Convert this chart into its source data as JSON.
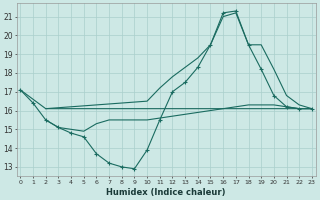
{
  "xlabel": "Humidex (Indice chaleur)",
  "bg_color": "#cde8e5",
  "grid_color": "#aacfcc",
  "line_color": "#1a6b60",
  "x_ticks": [
    0,
    1,
    2,
    3,
    4,
    5,
    6,
    7,
    8,
    9,
    10,
    11,
    12,
    13,
    14,
    15,
    16,
    17,
    18,
    19,
    20,
    21,
    22,
    23
  ],
  "ylim": [
    12.5,
    21.7
  ],
  "xlim": [
    -0.3,
    23.3
  ],
  "yticks": [
    13,
    14,
    15,
    16,
    17,
    18,
    19,
    20,
    21
  ],
  "line1_marked": {
    "x": [
      0,
      1,
      2,
      3,
      4,
      5,
      6,
      7,
      8,
      9,
      10,
      11,
      12,
      13,
      14,
      15,
      16,
      17,
      18,
      19,
      20,
      21,
      22,
      23
    ],
    "y": [
      17.1,
      16.4,
      15.5,
      15.1,
      14.8,
      14.6,
      13.7,
      13.2,
      13.0,
      12.9,
      13.9,
      15.5,
      17.0,
      17.5,
      18.3,
      19.5,
      21.2,
      21.3,
      19.5,
      18.2,
      16.8,
      16.2,
      16.1,
      16.1
    ]
  },
  "line2_flat": {
    "x": [
      0,
      2,
      23
    ],
    "y": [
      17.1,
      16.1,
      16.1
    ]
  },
  "line3_low": {
    "x": [
      2,
      3,
      4,
      5,
      6,
      7,
      8,
      9,
      10,
      11,
      12,
      13,
      14,
      15,
      16,
      17,
      18,
      19,
      20,
      21,
      22,
      23
    ],
    "y": [
      15.5,
      15.1,
      15.0,
      14.9,
      15.3,
      15.5,
      15.5,
      15.5,
      15.5,
      15.6,
      15.7,
      15.8,
      15.9,
      16.0,
      16.1,
      16.2,
      16.3,
      16.3,
      16.3,
      16.2,
      16.1,
      16.1
    ]
  },
  "line4_high": {
    "x": [
      2,
      10,
      11,
      12,
      13,
      14,
      15,
      16,
      17,
      18,
      19,
      20,
      21,
      22,
      23
    ],
    "y": [
      16.1,
      16.5,
      17.2,
      17.8,
      18.3,
      18.8,
      19.5,
      21.0,
      21.2,
      19.5,
      19.5,
      18.2,
      16.8,
      16.3,
      16.1
    ]
  }
}
